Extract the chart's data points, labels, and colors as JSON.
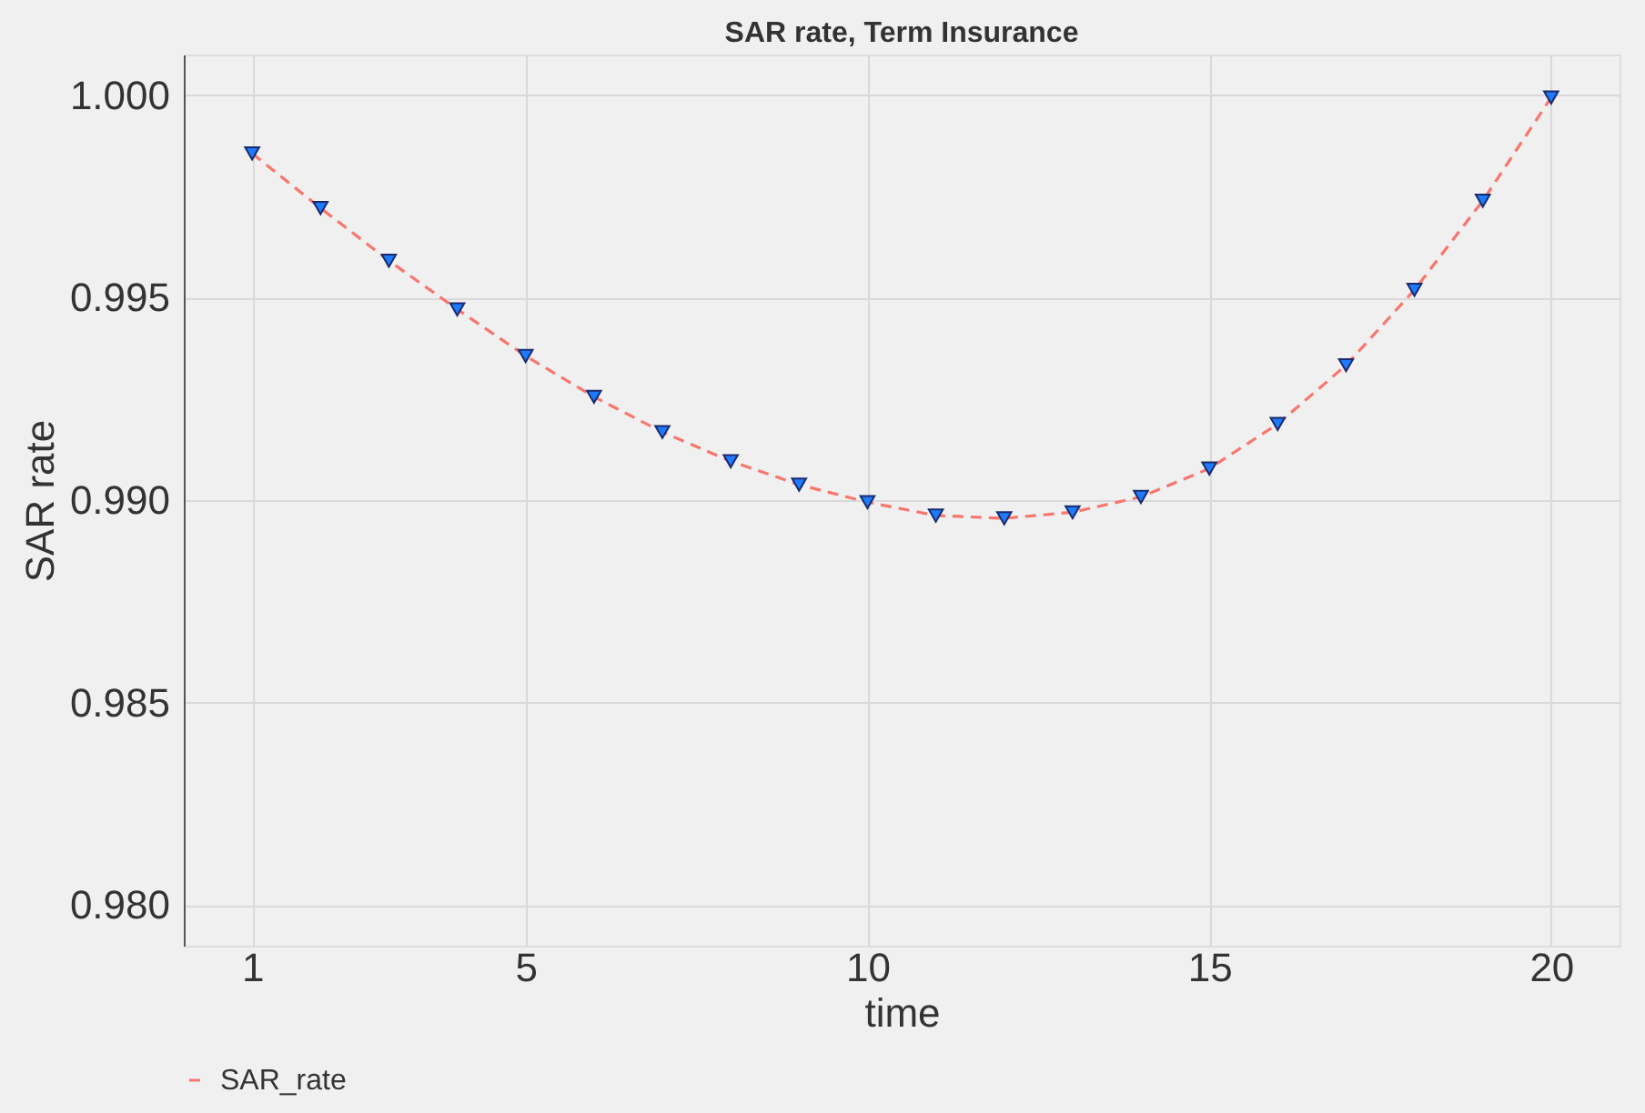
{
  "chart_data": {
    "type": "line",
    "title": "SAR rate, Term Insurance",
    "xlabel": "time",
    "ylabel": "SAR rate",
    "x": [
      1,
      2,
      3,
      4,
      5,
      6,
      7,
      8,
      9,
      10,
      11,
      12,
      13,
      14,
      15,
      16,
      17,
      18,
      19,
      20
    ],
    "series": [
      {
        "name": "SAR_rate",
        "color": "#f8766d",
        "values": [
          0.99856,
          0.99721,
          0.99591,
          0.99471,
          0.99356,
          0.99255,
          0.99168,
          0.99096,
          0.99038,
          0.98995,
          0.98962,
          0.98955,
          0.9897,
          0.99008,
          0.99078,
          0.99188,
          0.99333,
          0.99519,
          0.99739,
          0.99994
        ]
      },
      {
        "type": "scatter",
        "marker": "triangle",
        "color": "#1e7bff",
        "values": [
          0.99856,
          0.99721,
          0.99591,
          0.99471,
          0.99356,
          0.99255,
          0.99168,
          0.99096,
          0.99038,
          0.98995,
          0.98962,
          0.98955,
          0.9897,
          0.99008,
          0.99078,
          0.99188,
          0.99333,
          0.99519,
          0.99739,
          0.99994
        ]
      }
    ],
    "xlim": [
      0,
      21
    ],
    "xticks": [
      1,
      5,
      10,
      15,
      20
    ],
    "ylim": [
      0.979,
      1.001
    ],
    "yticks": [
      {
        "value": 0.98,
        "label": "0.980"
      },
      {
        "value": 0.985,
        "label": "0.985"
      },
      {
        "value": 0.99,
        "label": "0.990"
      },
      {
        "value": 0.995,
        "label": "0.995"
      },
      {
        "value": 1.0,
        "label": "1.000"
      }
    ],
    "grid": true,
    "legend": "bottom",
    "line_style": "dashed"
  }
}
